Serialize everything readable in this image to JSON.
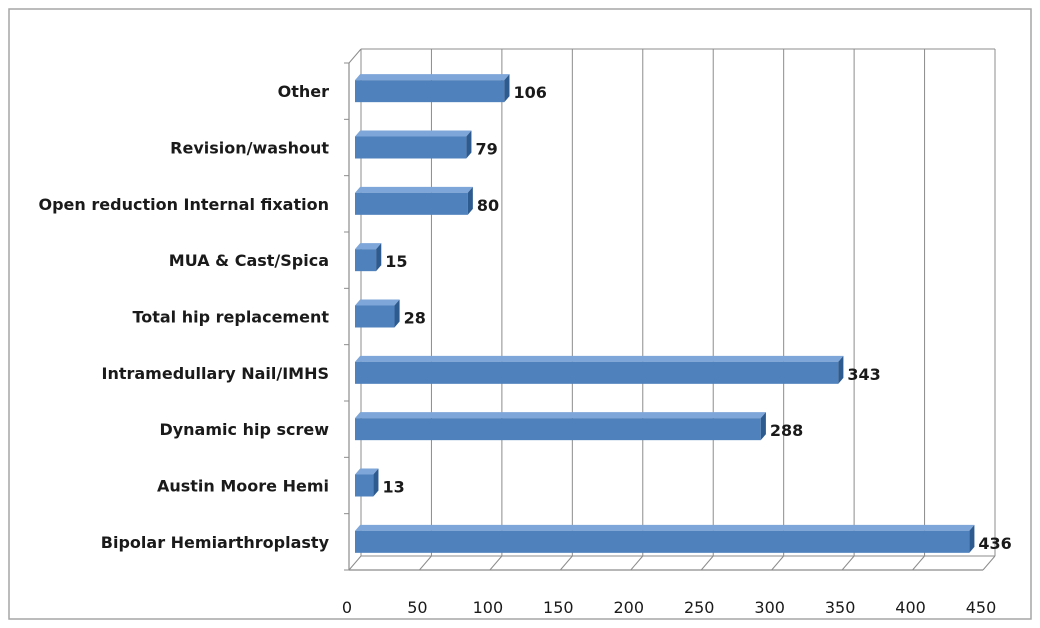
{
  "chart_data": {
    "type": "bar",
    "orientation": "horizontal",
    "style": "3d",
    "categories": [
      "Bipolar Hemiarthroplasty",
      "Austin Moore Hemi",
      "Dynamic hip screw",
      "Intramedullary Nail/IMHS",
      "Total hip replacement",
      "MUA & Cast/Spica",
      "Open reduction Internal fixation",
      "Revision/washout",
      "Other"
    ],
    "values": [
      436,
      13,
      288,
      343,
      28,
      15,
      80,
      79,
      106
    ],
    "data_labels": [
      "436",
      "13",
      "288",
      "343",
      "28",
      "15",
      "80",
      "79",
      "106"
    ],
    "xlim": [
      0,
      450
    ],
    "xticks": [
      0,
      50,
      100,
      150,
      200,
      250,
      300,
      350,
      400,
      450
    ],
    "xtick_labels": [
      "0",
      "50",
      "100",
      "150",
      "200",
      "250",
      "300",
      "350",
      "400",
      "450"
    ],
    "grid": "vertical",
    "legend": "none",
    "title": "",
    "xlabel": "",
    "ylabel": "",
    "colors": {
      "bar_front": "#4f81bd",
      "bar_top": "#7ea6d8",
      "bar_side": "#2d5a8f",
      "grid": "#8c8c8c",
      "border": "#a6a6a6"
    }
  }
}
